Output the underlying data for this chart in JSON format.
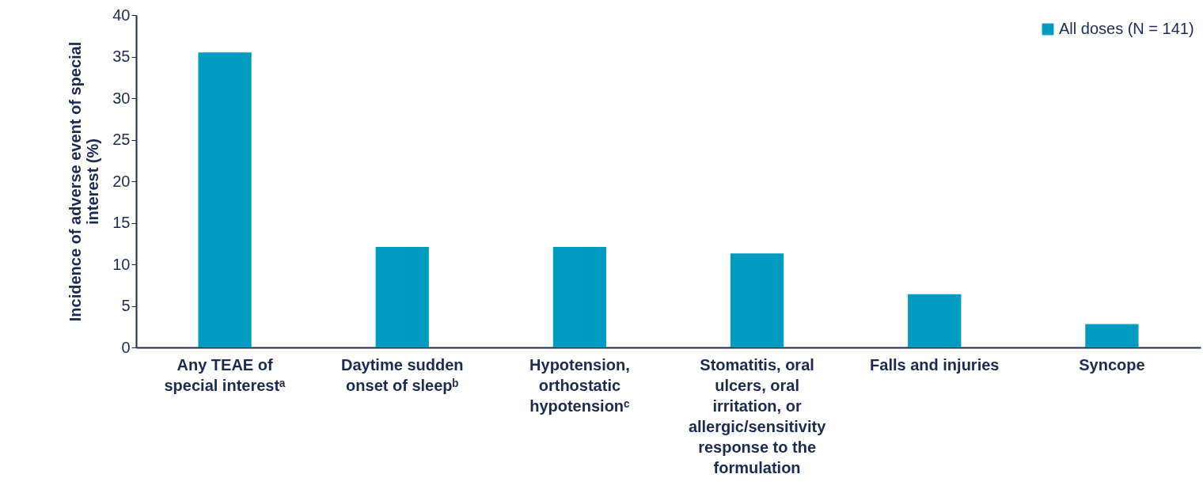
{
  "chart_data": {
    "type": "bar",
    "ylabel": "Incidence of adverse event of special interest (%)",
    "categories": [
      "Any TEAE of special interestᵃ",
      "Daytime sudden onset of sleepᵇ",
      "Hypotension, orthostatic hypotensionᶜ",
      "Stomatitis, oral ulcers, oral irritation, or allergic/sensitivity response to the formulation",
      "Falls and injuries",
      "Syncope"
    ],
    "series": [
      {
        "name": "All doses (N = 141)",
        "color": "#009bc1",
        "values": [
          35.5,
          12.1,
          12.1,
          11.3,
          6.4,
          2.8
        ]
      }
    ],
    "ylim": [
      0,
      40
    ],
    "yticks": [
      0,
      5,
      10,
      15,
      20,
      25,
      30,
      35,
      40
    ],
    "grid": false,
    "legend": "top right"
  }
}
